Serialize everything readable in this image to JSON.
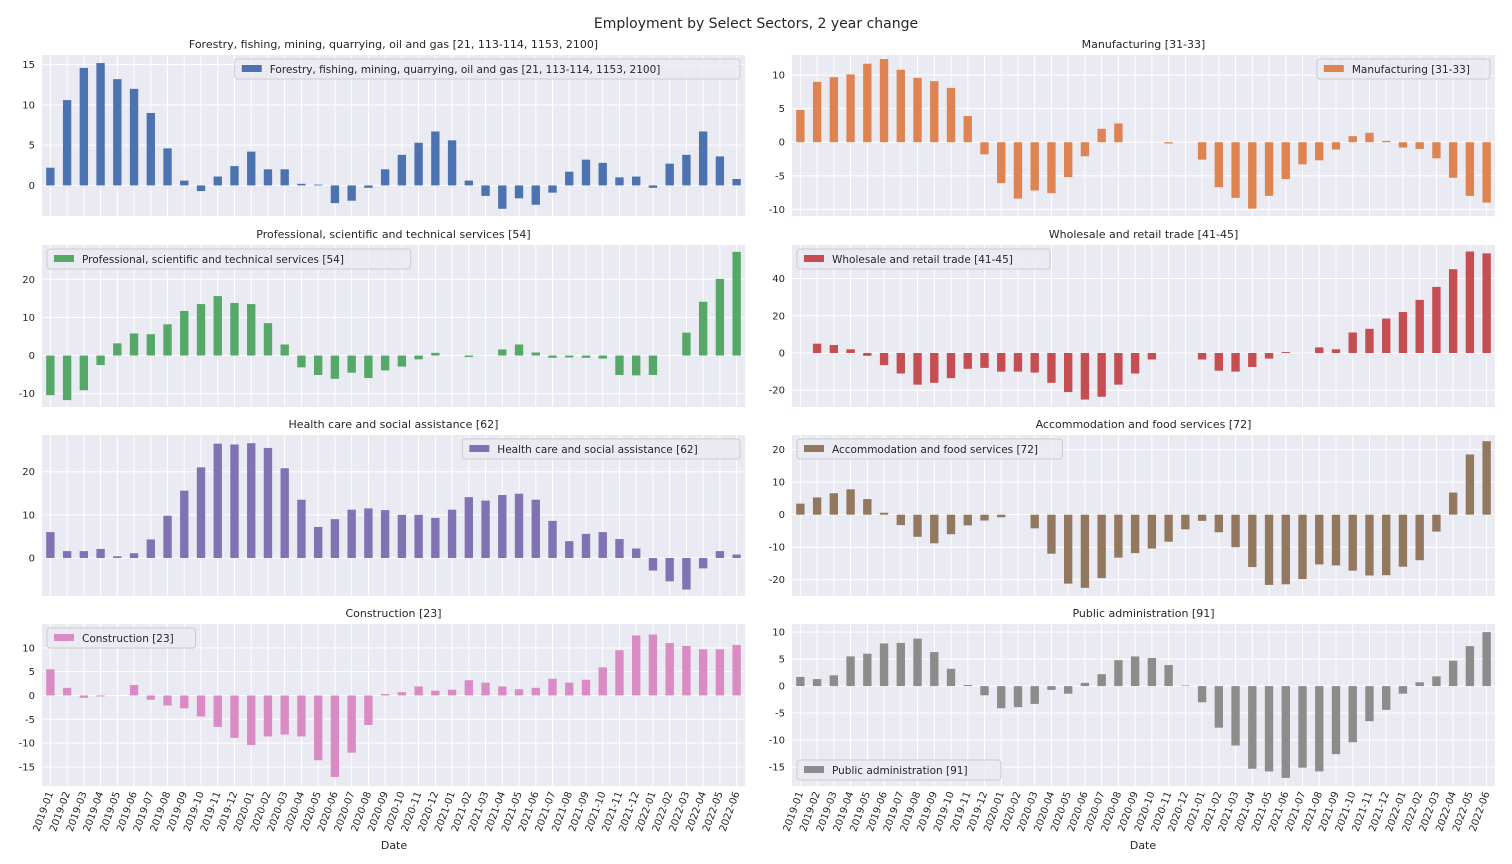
{
  "figure": {
    "title": "Employment by Select Sectors, 2 year change",
    "xlabel": "Date"
  },
  "chart_data": [
    {
      "type": "bar",
      "title": "Forestry, fishing, mining, quarrying, oil and gas [21, 113-114, 1153, 2100]",
      "color": "#4c72b0",
      "legend_position": "upper-right",
      "ylim": [
        -3.8,
        16.2
      ],
      "yticks": [
        0,
        5,
        10,
        15
      ],
      "series": [
        {
          "name": "Forestry, fishing, mining, quarrying, oil and gas [21, 113-114, 1153, 2100]",
          "values": [
            2.2,
            10.6,
            14.6,
            15.2,
            13.2,
            12.0,
            9.0,
            4.6,
            0.6,
            -0.7,
            1.1,
            2.4,
            4.2,
            2.0,
            2.0,
            0.2,
            0.1,
            -2.2,
            -1.9,
            -0.3,
            2.0,
            3.8,
            5.3,
            6.7,
            5.6,
            0.6,
            -1.3,
            -2.9,
            -1.6,
            -2.4,
            -0.9,
            1.7,
            3.2,
            2.8,
            1.0,
            1.1,
            -0.3,
            2.7,
            3.8,
            6.7,
            3.6,
            0.8
          ]
        }
      ]
    },
    {
      "type": "bar",
      "title": "Manufacturing [31-33]",
      "color": "#dd8452",
      "legend_position": "upper-right",
      "ylim": [
        -11.0,
        13.0
      ],
      "yticks": [
        -10,
        -5,
        0,
        5,
        10
      ],
      "series": [
        {
          "name": "Manufacturing [31-33]",
          "values": [
            4.8,
            9.0,
            9.7,
            10.1,
            11.7,
            12.4,
            10.8,
            9.6,
            9.1,
            8.1,
            3.9,
            -1.8,
            -6.1,
            -8.4,
            -7.2,
            -7.6,
            -5.2,
            -2.1,
            2.0,
            2.8,
            0.0,
            0.0,
            -0.2,
            0.0,
            -2.6,
            -6.7,
            -8.3,
            -9.9,
            -8.0,
            -5.5,
            -3.3,
            -2.7,
            -1.1,
            0.9,
            1.4,
            0.2,
            -0.8,
            -1.0,
            -2.4,
            -5.3,
            -8.0,
            -9.0
          ]
        }
      ]
    },
    {
      "type": "bar",
      "title": "Professional, scientific and technical services [54]",
      "color": "#55a868",
      "legend_position": "upper-left",
      "ylim": [
        -13.5,
        29.0
      ],
      "yticks": [
        -10,
        0,
        10,
        20
      ],
      "series": [
        {
          "name": "Professional, scientific and technical services [54]",
          "values": [
            -10.4,
            -11.7,
            -9.1,
            -2.5,
            3.2,
            5.8,
            5.6,
            8.2,
            11.7,
            13.5,
            15.6,
            13.8,
            13.5,
            8.5,
            2.9,
            -3.1,
            -5.1,
            -6.1,
            -4.5,
            -5.9,
            -3.9,
            -2.9,
            -1.0,
            0.7,
            0.0,
            -0.4,
            0.0,
            1.6,
            2.9,
            0.8,
            -0.6,
            -0.5,
            -0.6,
            -0.8,
            -5.1,
            -5.2,
            -5.1,
            0.0,
            6.0,
            14.1,
            20.1,
            27.2
          ]
        }
      ]
    },
    {
      "type": "bar",
      "title": "Wholesale and retail trade [41-45]",
      "color": "#c44e52",
      "legend_position": "upper-left",
      "ylim": [
        -29.0,
        58.0
      ],
      "yticks": [
        -20,
        0,
        20,
        40
      ],
      "series": [
        {
          "name": "Wholesale and retail trade [41-45]",
          "values": [
            0.0,
            5.0,
            4.3,
            2.0,
            -1.5,
            -6.5,
            -11.0,
            -17.0,
            -16.0,
            -13.5,
            -8.5,
            -8.0,
            -10.0,
            -10.0,
            -10.5,
            -16.0,
            -21.0,
            -25.0,
            -23.5,
            -17.0,
            -11.0,
            -3.5,
            0.0,
            0.0,
            -3.5,
            -9.5,
            -10.0,
            -7.5,
            -3.0,
            0.5,
            0.0,
            3.0,
            2.0,
            11.0,
            13.0,
            18.5,
            22.0,
            28.5,
            35.5,
            45.0,
            54.5,
            53.5
          ]
        }
      ]
    },
    {
      "type": "bar",
      "title": "Health care and social assistance [62]",
      "color": "#8172b3",
      "legend_position": "upper-right",
      "ylim": [
        -8.8,
        28.5
      ],
      "yticks": [
        0,
        10,
        20
      ],
      "series": [
        {
          "name": "Health care and social assistance [62]",
          "values": [
            6.0,
            1.6,
            1.6,
            2.1,
            0.4,
            1.1,
            4.3,
            9.8,
            15.6,
            21.0,
            26.5,
            26.3,
            26.6,
            25.5,
            20.8,
            13.5,
            7.2,
            9.0,
            11.2,
            11.5,
            11.1,
            10.0,
            10.0,
            9.3,
            11.2,
            14.1,
            13.3,
            14.6,
            14.9,
            13.5,
            8.6,
            3.9,
            5.6,
            6.0,
            4.4,
            2.2,
            -2.9,
            -5.4,
            -7.3,
            -2.4,
            1.6,
            0.8
          ]
        }
      ]
    },
    {
      "type": "bar",
      "title": "Accommodation and food services [72]",
      "color": "#937860",
      "legend_position": "upper-left",
      "ylim": [
        -25.0,
        24.5
      ],
      "yticks": [
        -20,
        -10,
        0,
        10,
        20
      ],
      "series": [
        {
          "name": "Accommodation and food services [72]",
          "values": [
            3.4,
            5.3,
            6.6,
            7.8,
            4.8,
            0.6,
            -3.2,
            -6.8,
            -8.8,
            -6.0,
            -3.3,
            -1.8,
            -0.8,
            0.0,
            -4.2,
            -12.0,
            -21.2,
            -22.5,
            -19.5,
            -13.2,
            -11.8,
            -10.4,
            -8.3,
            -4.5,
            -1.9,
            -5.4,
            -10.0,
            -16.1,
            -21.6,
            -21.4,
            -19.8,
            -15.3,
            -15.6,
            -17.2,
            -18.7,
            -18.6,
            -16.0,
            -14.0,
            -5.2,
            6.8,
            18.5,
            22.6
          ]
        }
      ]
    },
    {
      "type": "bar",
      "title": "Construction [23]",
      "color": "#da8bc3",
      "legend_position": "upper-left",
      "ylim": [
        -19.0,
        15.0
      ],
      "yticks": [
        -15,
        -10,
        -5,
        0,
        5,
        10
      ],
      "series": [
        {
          "name": "Construction [23]",
          "values": [
            5.5,
            1.6,
            -0.5,
            -0.2,
            0.0,
            2.2,
            -0.9,
            -2.1,
            -2.7,
            -4.4,
            -6.6,
            -8.9,
            -10.4,
            -8.6,
            -8.2,
            -8.6,
            -13.6,
            -17.1,
            -12.0,
            -6.2,
            0.3,
            0.7,
            1.9,
            1.0,
            1.2,
            3.2,
            2.7,
            1.9,
            1.3,
            1.6,
            3.5,
            2.7,
            3.3,
            5.9,
            9.5,
            12.6,
            12.8,
            11.0,
            10.4,
            9.7,
            9.7,
            10.6
          ]
        }
      ]
    },
    {
      "type": "bar",
      "title": "Public administration [91]",
      "color": "#8c8c8c",
      "legend_position": "lower-left",
      "ylim": [
        -18.5,
        11.5
      ],
      "yticks": [
        -15,
        -10,
        -5,
        0,
        5,
        10
      ],
      "series": [
        {
          "name": "Public administration [91]",
          "values": [
            1.7,
            1.3,
            2.0,
            5.5,
            6.0,
            7.9,
            8.0,
            8.8,
            6.3,
            3.2,
            0.2,
            -1.7,
            -4.1,
            -3.9,
            -3.3,
            -0.7,
            -1.4,
            0.6,
            2.2,
            4.8,
            5.5,
            5.2,
            3.9,
            0.1,
            -3.0,
            -7.7,
            -11.0,
            -15.3,
            -15.8,
            -17.0,
            -15.1,
            -15.8,
            -12.6,
            -10.4,
            -6.5,
            -4.4,
            -1.4,
            0.7,
            1.8,
            4.7,
            7.4,
            10.0
          ]
        }
      ]
    }
  ],
  "x_dates": [
    "2019-01",
    "2019-02",
    "2019-03",
    "2019-04",
    "2019-05",
    "2019-06",
    "2019-07",
    "2019-08",
    "2019-09",
    "2019-10",
    "2019-11",
    "2019-12",
    "2020-01",
    "2020-02",
    "2020-03",
    "2020-04",
    "2020-05",
    "2020-06",
    "2020-07",
    "2020-08",
    "2020-09",
    "2020-10",
    "2020-11",
    "2020-12",
    "2021-01",
    "2021-02",
    "2021-03",
    "2021-04",
    "2021-05",
    "2021-06",
    "2021-07",
    "2021-08",
    "2021-09",
    "2021-10",
    "2021-11",
    "2021-12",
    "2022-01",
    "2022-02",
    "2022-03",
    "2022-04",
    "2022-05",
    "2022-06"
  ]
}
